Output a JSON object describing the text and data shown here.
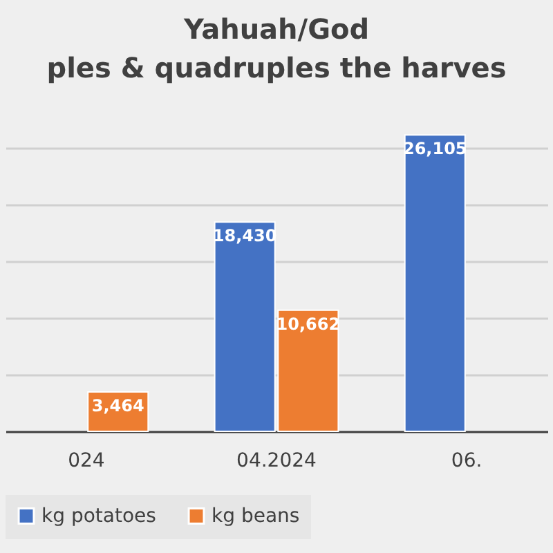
{
  "chart_data": {
    "type": "bar",
    "title": "Yahuah/God",
    "subtitle": "ples & quadruples the harves",
    "categories": [
      "024",
      "04.2024",
      "06."
    ],
    "series": [
      {
        "name": "kg potatoes",
        "color": "#4472c4",
        "values": [
          null,
          18430,
          26105
        ],
        "value_labels": [
          null,
          "18,430",
          "26,105"
        ]
      },
      {
        "name": "kg beans",
        "color": "#ed7d31",
        "values": [
          3464,
          10662,
          null
        ],
        "value_labels": [
          "3,464",
          "10,662",
          null
        ]
      }
    ],
    "grid": "y",
    "legend": "bottom",
    "tick_labels": "x"
  }
}
